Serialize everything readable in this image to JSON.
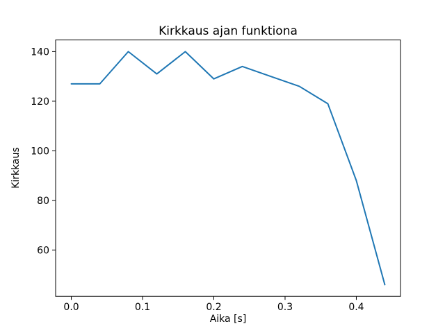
{
  "figure": {
    "background_color": "#ffffff",
    "text_color": "#000000",
    "spine_color": "#000000"
  },
  "chart_data": {
    "type": "line",
    "title": "Kirkkaus ajan funktiona",
    "xlabel": "Aika [s]",
    "ylabel": "Kirkkaus",
    "x": [
      0.0,
      0.04,
      0.08,
      0.12,
      0.16,
      0.2,
      0.24,
      0.28,
      0.32,
      0.36,
      0.4,
      0.44
    ],
    "y": [
      127,
      127,
      140,
      131,
      140,
      129,
      134,
      130,
      126,
      119,
      88,
      46
    ],
    "line_color": "#1f77b4",
    "xlim": [
      -0.022,
      0.462
    ],
    "ylim": [
      41.3,
      144.7
    ],
    "xticks": [
      {
        "value": 0.0,
        "label": "0.0"
      },
      {
        "value": 0.1,
        "label": "0.1"
      },
      {
        "value": 0.2,
        "label": "0.2"
      },
      {
        "value": 0.3,
        "label": "0.3"
      },
      {
        "value": 0.4,
        "label": "0.4"
      }
    ],
    "yticks": [
      {
        "value": 60,
        "label": "60"
      },
      {
        "value": 80,
        "label": "80"
      },
      {
        "value": 100,
        "label": "100"
      },
      {
        "value": 120,
        "label": "120"
      },
      {
        "value": 140,
        "label": "140"
      }
    ],
    "grid": false,
    "legend_position": "none"
  }
}
